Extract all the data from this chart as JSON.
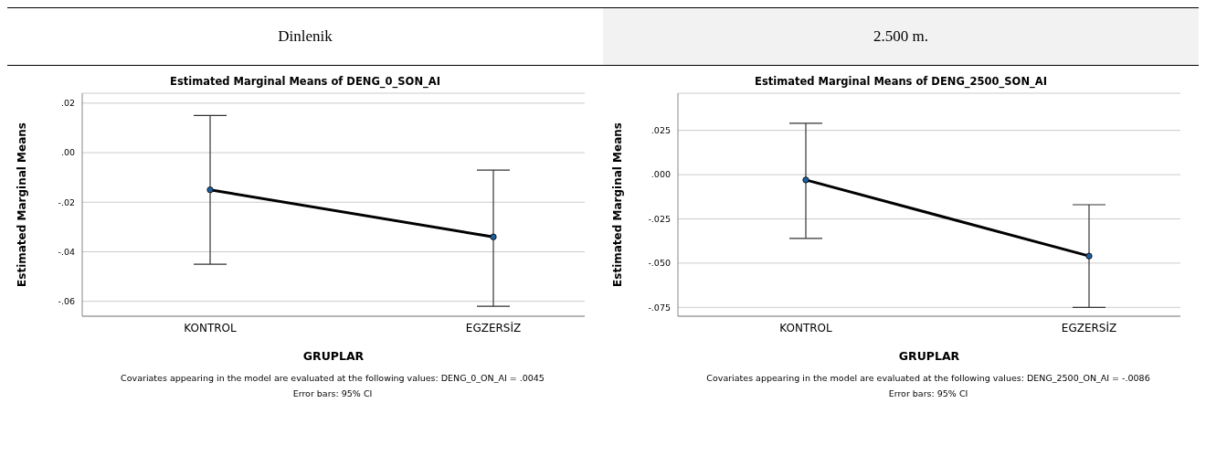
{
  "chart_data": [
    {
      "type": "line",
      "title": "Estimated Marginal Means of DENG_0_SON_AI",
      "xlabel": "GRUPLAR",
      "ylabel": "Estimated Marginal Means",
      "categories": [
        "KONTROL",
        "EGZERSİZ"
      ],
      "series": [
        {
          "color": "#000000",
          "values": [
            -0.015,
            -0.034
          ],
          "errors": [
            [
              -0.045,
              0.015
            ],
            [
              -0.062,
              -0.007
            ]
          ]
        }
      ],
      "ylim": [
        -0.066,
        0.024
      ],
      "yticks": [
        {
          "value": -0.06,
          "label": "-.06"
        },
        {
          "value": -0.04,
          "label": "-.04"
        },
        {
          "value": -0.02,
          "label": "-.02"
        },
        {
          "value": 0,
          "label": ".00"
        },
        {
          "value": 0.02,
          "label": ".02"
        }
      ],
      "grid": "y",
      "legend": false,
      "marker": "circle",
      "line_style": "solid",
      "annotations": [
        "Dinlenik",
        "Covariates appearing in the model are evaluated at the following values: DENG_0_ON_AI = .0045",
        "Error bars: 95% CI"
      ]
    },
    {
      "type": "line",
      "title": "Estimated Marginal Means of DENG_2500_SON_AI",
      "xlabel": "GRUPLAR",
      "ylabel": "Estimated Marginal Means",
      "categories": [
        "KONTROL",
        "EGZERSİZ"
      ],
      "series": [
        {
          "color": "#000000",
          "values": [
            -0.003,
            -0.046
          ],
          "errors": [
            [
              -0.036,
              0.029
            ],
            [
              -0.075,
              -0.017
            ]
          ]
        }
      ],
      "ylim": [
        -0.08,
        0.046
      ],
      "yticks": [
        {
          "value": -0.075,
          "label": "-.075"
        },
        {
          "value": -0.05,
          "label": "-.050"
        },
        {
          "value": -0.025,
          "label": "-.025"
        },
        {
          "value": 0,
          "label": ".000"
        },
        {
          "value": 0.025,
          "label": ".025"
        }
      ],
      "grid": "y",
      "legend": false,
      "marker": "circle",
      "line_style": "solid",
      "annotations": [
        "2.500 m.",
        "Covariates appearing in the model are evaluated at the following values: DENG_2500_ON_AI = -.0086",
        "Error bars: 95% CI"
      ]
    }
  ]
}
